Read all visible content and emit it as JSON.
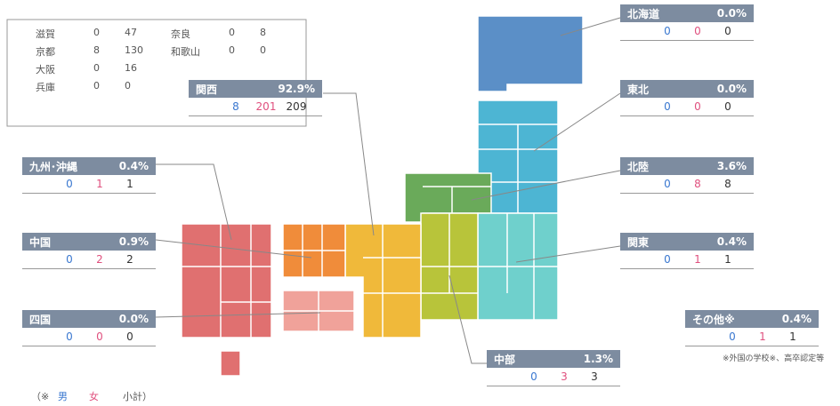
{
  "regions": [
    {
      "name": "北海道",
      "percent": "0.0%",
      "male": "0",
      "female": "0",
      "total": "0"
    },
    {
      "name": "東北",
      "percent": "0.0%",
      "male": "0",
      "female": "0",
      "total": "0"
    },
    {
      "name": "北陸",
      "percent": "3.6%",
      "male": "0",
      "female": "8",
      "total": "8"
    },
    {
      "name": "関東",
      "percent": "0.4%",
      "male": "0",
      "female": "1",
      "total": "1"
    },
    {
      "name": "その他※",
      "percent": "0.4%",
      "male": "0",
      "female": "1",
      "total": "1"
    },
    {
      "name": "中部",
      "percent": "1.3%",
      "male": "0",
      "female": "3",
      "total": "3"
    },
    {
      "name": "関西",
      "percent": "92.9%",
      "male": "8",
      "female": "201",
      "total": "209"
    },
    {
      "name": "九州･沖縄",
      "percent": "0.4%",
      "male": "0",
      "female": "1",
      "total": "1"
    },
    {
      "name": "中国",
      "percent": "0.9%",
      "male": "0",
      "female": "2",
      "total": "2"
    },
    {
      "name": "四国",
      "percent": "0.0%",
      "male": "0",
      "female": "0",
      "total": "0"
    }
  ],
  "kansai_detail": [
    {
      "name": "滋賀",
      "male": "0",
      "female": "47"
    },
    {
      "name": "京都",
      "male": "8",
      "female": "130"
    },
    {
      "name": "大阪",
      "male": "0",
      "female": "16"
    },
    {
      "name": "兵庫",
      "male": "0",
      "female": "0"
    },
    {
      "name": "奈良",
      "male": "0",
      "female": "8"
    },
    {
      "name": "和歌山",
      "male": "0",
      "female": "0"
    }
  ],
  "legend": {
    "open": "（※",
    "male": "男",
    "female": "女",
    "total": "小計）"
  },
  "footnote": "※外国の学校※、高卒認定等"
}
